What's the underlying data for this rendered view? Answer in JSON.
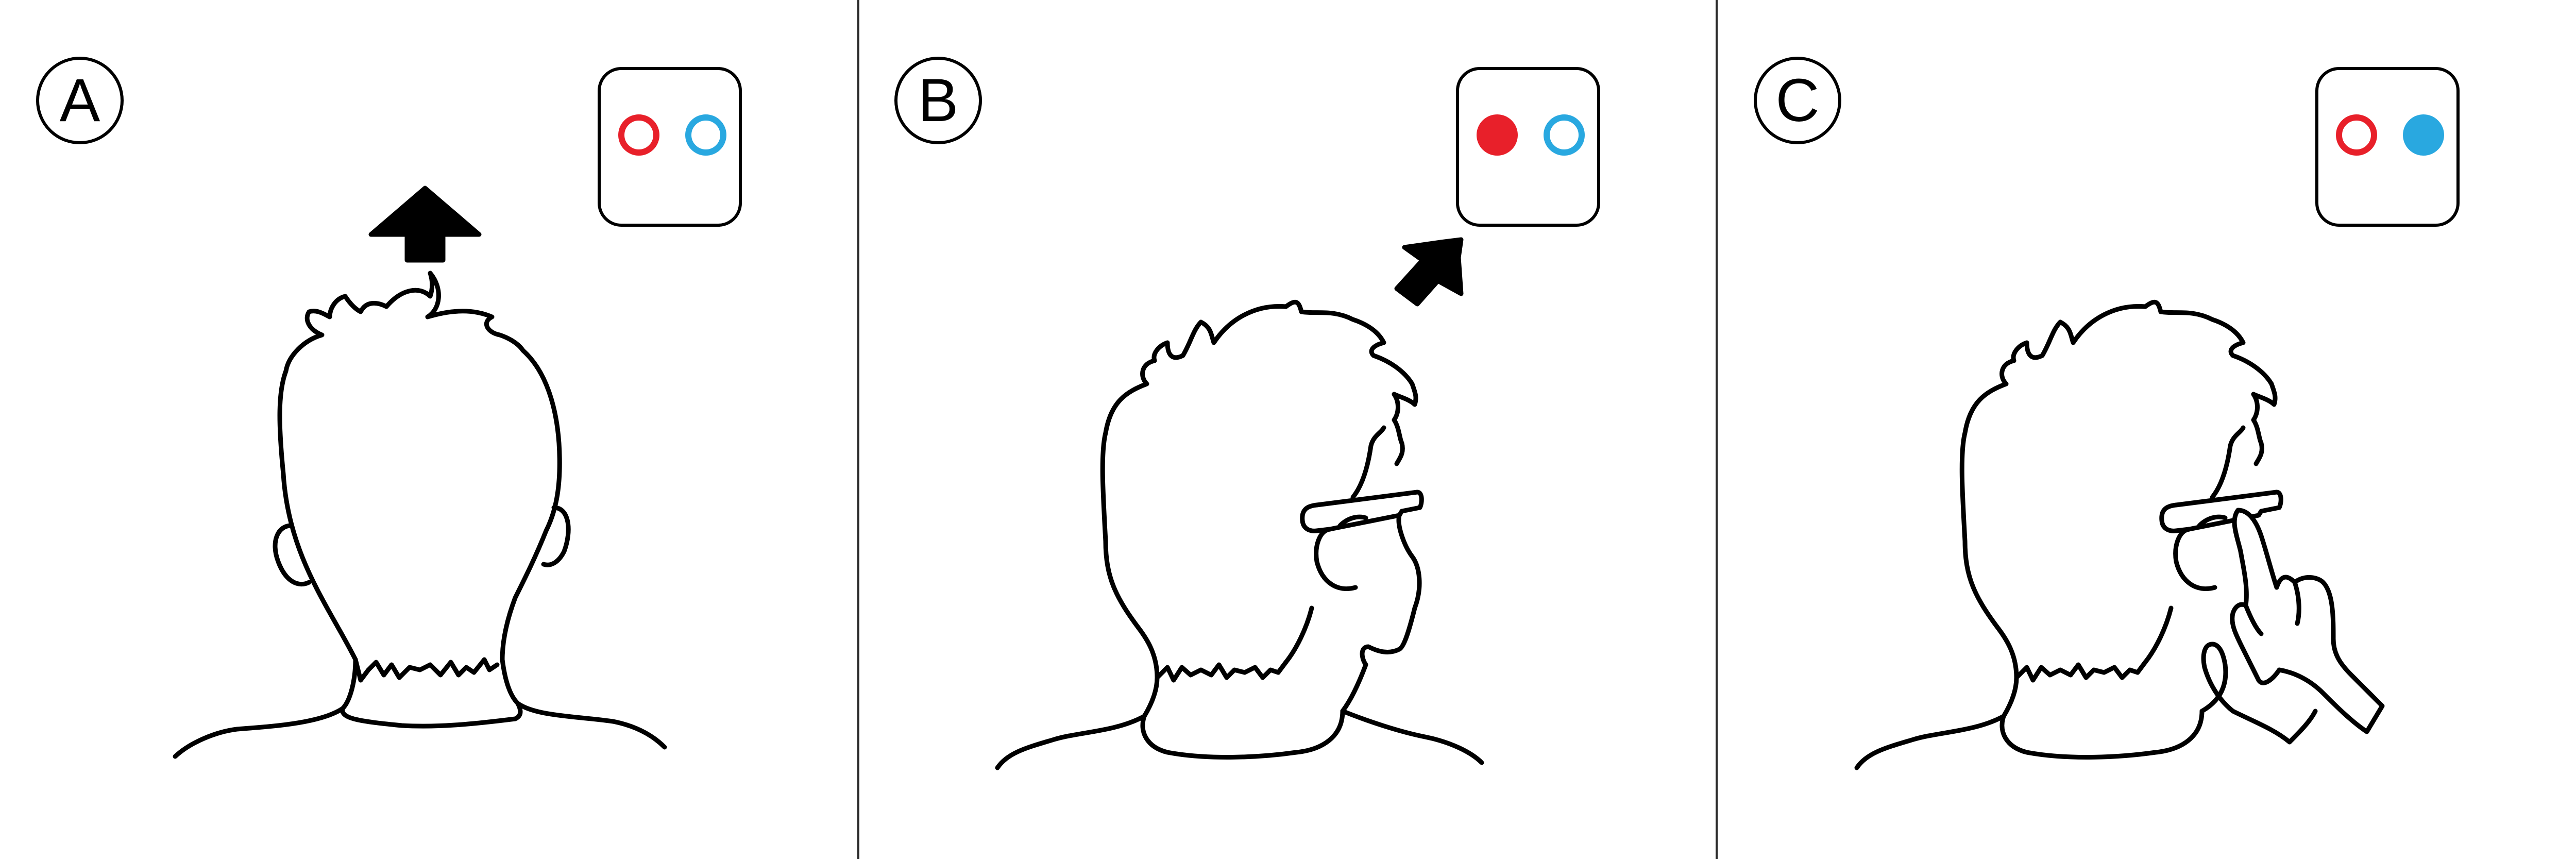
{
  "panels": [
    {
      "label": "A",
      "indicator": {
        "left_dot": {
          "color": "#e8202a",
          "filled": false
        },
        "right_dot": {
          "color": "#29a8e0",
          "filled": false
        }
      },
      "arrow_icon": "arrow-up-icon",
      "figure_icon": "head-back-view-icon"
    },
    {
      "label": "B",
      "indicator": {
        "left_dot": {
          "color": "#e8202a",
          "filled": true
        },
        "right_dot": {
          "color": "#29a8e0",
          "filled": false
        }
      },
      "arrow_icon": "arrow-up-right-icon",
      "figure_icon": "head-with-glasses-icon"
    },
    {
      "label": "C",
      "indicator": {
        "left_dot": {
          "color": "#e8202a",
          "filled": false
        },
        "right_dot": {
          "color": "#29a8e0",
          "filled": true
        }
      },
      "arrow_icon": "none",
      "figure_icon": "head-with-glasses-touch-icon"
    }
  ]
}
